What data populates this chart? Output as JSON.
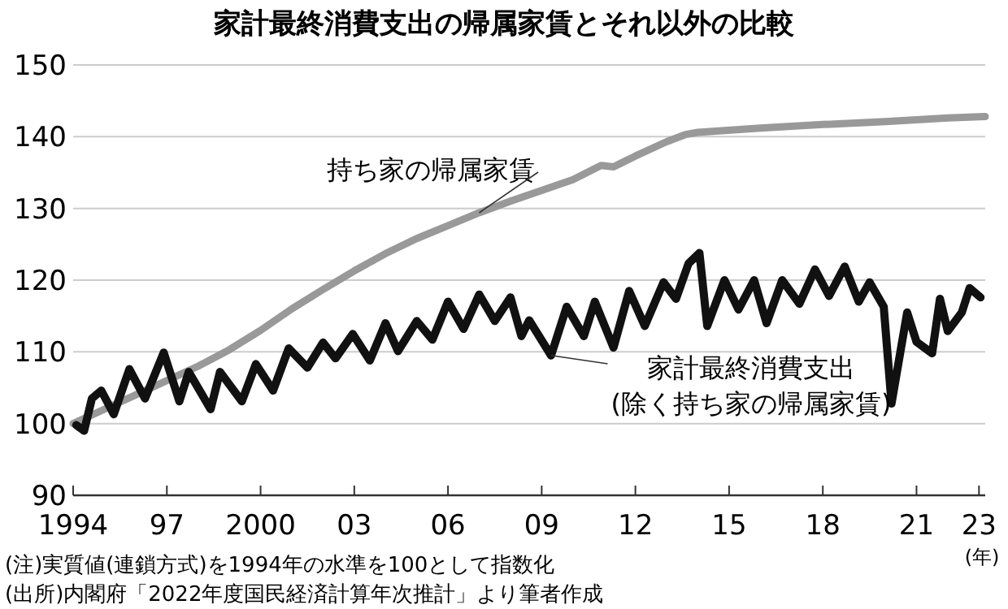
{
  "chart_data": {
    "type": "line",
    "title": "家計最終消費支出の帰属家賃とそれ以外の比較",
    "xlabel": "(年)",
    "xlim": [
      1994,
      2023.2
    ],
    "xticks": [
      {
        "value": 1994,
        "label": "1994"
      },
      {
        "value": 1997,
        "label": "97"
      },
      {
        "value": 2000,
        "label": "2000"
      },
      {
        "value": 2003,
        "label": "03"
      },
      {
        "value": 2006,
        "label": "06"
      },
      {
        "value": 2009,
        "label": "09"
      },
      {
        "value": 2012,
        "label": "12"
      },
      {
        "value": 2015,
        "label": "15"
      },
      {
        "value": 2018,
        "label": "18"
      },
      {
        "value": 2021,
        "label": "21"
      },
      {
        "value": 2023,
        "label": "23"
      }
    ],
    "ylim": [
      90,
      150
    ],
    "yticks": [
      90,
      100,
      110,
      120,
      130,
      140,
      150
    ],
    "grid": "y",
    "legend": false,
    "series": [
      {
        "name": "持ち家の帰属家賃",
        "color": "#999999",
        "x": [
          1994,
          1995,
          1996,
          1997,
          1998,
          1999,
          2000,
          2001,
          2002,
          2003,
          2004,
          2005,
          2006,
          2007,
          2008,
          2009,
          2010,
          2010.9,
          2011.3,
          2012,
          2013,
          2013.6,
          2014,
          2016,
          2018,
          2020,
          2022,
          2023.2
        ],
        "values": [
          100,
          102,
          104,
          106,
          108,
          110.3,
          113,
          116,
          118.7,
          121.3,
          123.7,
          125.8,
          127.6,
          129.4,
          131,
          132.5,
          134,
          136,
          135.8,
          137.3,
          139.3,
          140.3,
          140.6,
          141.2,
          141.7,
          142.1,
          142.6,
          142.8
        ]
      },
      {
        "name": "家計最終消費支出\n(除く持ち家の帰属家賃)",
        "color": "#111111",
        "x": [
          1994.1,
          1994.35,
          1994.6,
          1994.9,
          1995.3,
          1995.8,
          1996.3,
          1996.9,
          1997.4,
          1997.7,
          1998.4,
          1998.7,
          1999.4,
          1999.85,
          2000.4,
          2000.9,
          2001.5,
          2002,
          2002.4,
          2002.95,
          2003.5,
          2004,
          2004.4,
          2005,
          2005.5,
          2006,
          2006.5,
          2007,
          2007.5,
          2008,
          2008.35,
          2008.6,
          2009.3,
          2009.8,
          2010.35,
          2010.7,
          2011.3,
          2011.8,
          2012.3,
          2012.9,
          2013.3,
          2013.7,
          2014.05,
          2014.3,
          2014.85,
          2015.3,
          2015.8,
          2016.2,
          2016.7,
          2017.25,
          2017.75,
          2018.2,
          2018.7,
          2019.15,
          2019.5,
          2019.95,
          2020.2,
          2020.7,
          2021,
          2021.5,
          2021.75,
          2022,
          2022.45,
          2022.7,
          2023.05
        ],
        "values": [
          99.8,
          99,
          103.5,
          104.6,
          101.3,
          107.6,
          103.5,
          109.9,
          103.1,
          107.2,
          102,
          107.2,
          103.1,
          108.3,
          104.6,
          110.5,
          107.8,
          111.3,
          109.1,
          112.5,
          108.8,
          114,
          110.1,
          114.3,
          111.7,
          117,
          113.2,
          118,
          114.3,
          117.6,
          112.2,
          114.4,
          109.5,
          116.3,
          112.2,
          117,
          110.6,
          118.5,
          113.6,
          119.7,
          117.4,
          122.3,
          123.8,
          113.6,
          120,
          115.9,
          120,
          114,
          120,
          116.7,
          121.5,
          117.8,
          121.9,
          117,
          119.7,
          116.3,
          102.8,
          115.5,
          111.4,
          109.8,
          117.4,
          112.9,
          115.5,
          118.9,
          117.6
        ]
      }
    ],
    "annotations": [
      "(注)実質値(連鎖方式)を1994年の水準を100として指数化",
      "(出所)内閣府「2022年度国民経済計算年次推計」より筆者作成"
    ]
  }
}
